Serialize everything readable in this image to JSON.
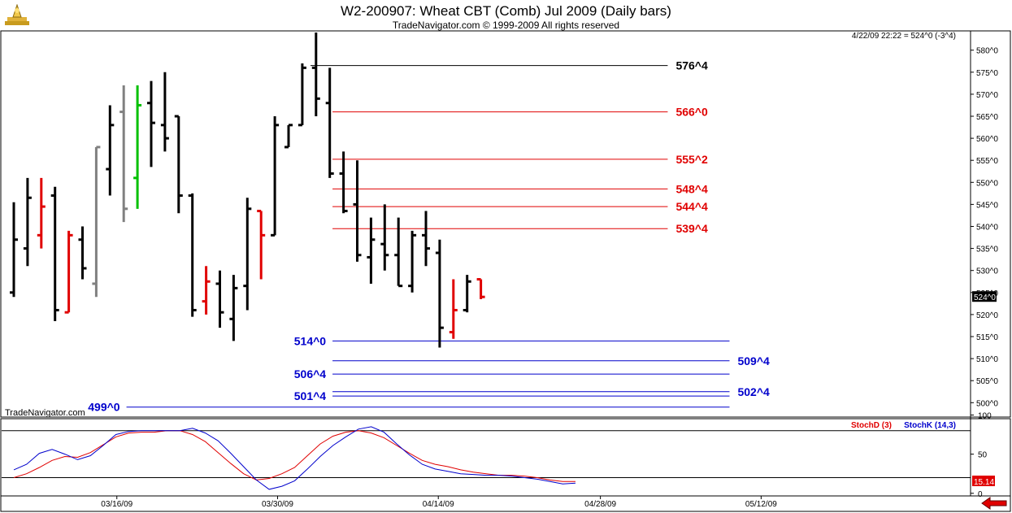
{
  "header": {
    "title": "W2-200907:  Wheat CBT (Comb) Jul 2009  (Daily bars)",
    "subtitle": "TradeNavigator.com © 1999-2009 All rights reserved",
    "timestamp": "4/22/09 22:22 = 524^0 (-3^4)",
    "watermark": "TradeNavigator.com",
    "last_price_label": "524^0",
    "indicator_value_label": "15.14"
  },
  "chart_data": [
    {
      "type": "bar",
      "subtype": "ohlc",
      "title": "W2-200907:  Wheat CBT (Comb) Jul 2009  (Daily bars)",
      "ylim": [
        496,
        583
      ],
      "y_ticks": [
        500,
        505,
        510,
        515,
        520,
        525,
        530,
        535,
        540,
        545,
        550,
        555,
        560,
        565,
        570,
        575,
        580
      ],
      "y_tick_labels": [
        "500^0",
        "505^0",
        "510^0",
        "515^0",
        "520^0",
        "525^0",
        "530^0",
        "535^0",
        "540^0",
        "545^0",
        "550^0",
        "555^0",
        "560^0",
        "565^0",
        "570^0",
        "575^0",
        "580^0"
      ],
      "x_tick_labels": [
        "03/16/09",
        "03/30/09",
        "04/14/09",
        "04/28/09",
        "05/12/09"
      ],
      "x_tick_index": [
        7.5,
        19.2,
        30.9,
        42.7,
        54.4
      ],
      "x_range": [
        -0.5,
        66
      ],
      "bars": [
        {
          "o": 525,
          "h": 545.5,
          "l": 524,
          "c": 537,
          "color": "#000000"
        },
        {
          "o": 535,
          "h": 551,
          "l": 531,
          "c": 546.5,
          "color": "#000000"
        },
        {
          "o": 538,
          "h": 551,
          "l": 535,
          "c": 544.5,
          "color": "#e00000"
        },
        {
          "o": 547,
          "h": 549,
          "l": 518.5,
          "c": 521,
          "color": "#000000"
        },
        {
          "o": 520.5,
          "h": 539,
          "l": 520.5,
          "c": 538,
          "color": "#e00000"
        },
        {
          "o": 537,
          "h": 540,
          "l": 528,
          "c": 530.5,
          "color": "#000000"
        },
        {
          "o": 527,
          "h": 558,
          "l": 524,
          "c": 558,
          "color": "#808080"
        },
        {
          "o": 553,
          "h": 567.5,
          "l": 547,
          "c": 563,
          "color": "#000000"
        },
        {
          "o": 566,
          "h": 572,
          "l": 541,
          "c": 544,
          "color": "#808080"
        },
        {
          "o": 551,
          "h": 572,
          "l": 544,
          "c": 567.5,
          "color": "#00c000"
        },
        {
          "o": 568,
          "h": 573,
          "l": 553.5,
          "c": 563.5,
          "color": "#000000"
        },
        {
          "o": 563,
          "h": 575,
          "l": 557,
          "c": 560,
          "color": "#000000"
        },
        {
          "o": 565,
          "h": 565,
          "l": 543,
          "c": 547,
          "color": "#000000"
        },
        {
          "o": 547,
          "h": 547.5,
          "l": 519.5,
          "c": 521,
          "color": "#000000"
        },
        {
          "o": 523,
          "h": 531,
          "l": 520,
          "c": 527.5,
          "color": "#e00000"
        },
        {
          "o": 527,
          "h": 530,
          "l": 517,
          "c": 520.5,
          "color": "#000000"
        },
        {
          "o": 519,
          "h": 529,
          "l": 514,
          "c": 526,
          "color": "#000000"
        },
        {
          "o": 526.5,
          "h": 546.5,
          "l": 521,
          "c": 544,
          "color": "#000000"
        },
        {
          "o": 543.5,
          "h": 543.5,
          "l": 528,
          "c": 538,
          "color": "#e00000"
        },
        {
          "o": 538,
          "h": 565,
          "l": 538,
          "c": 563,
          "color": "#000000"
        },
        {
          "o": 558,
          "h": 563,
          "l": 558,
          "c": 563,
          "color": "#000000"
        },
        {
          "o": 563,
          "h": 577,
          "l": 563,
          "c": 576,
          "color": "#000000"
        },
        {
          "o": 576,
          "h": 584,
          "l": 565,
          "c": 569,
          "color": "#000000"
        },
        {
          "o": 568,
          "h": 576,
          "l": 551,
          "c": 552,
          "color": "#000000"
        },
        {
          "o": 552,
          "h": 557,
          "l": 543,
          "c": 543.5,
          "color": "#000000"
        },
        {
          "o": 545,
          "h": 555,
          "l": 532,
          "c": 533.5,
          "color": "#000000"
        },
        {
          "o": 533,
          "h": 542,
          "l": 527,
          "c": 537,
          "color": "#000000"
        },
        {
          "o": 536,
          "h": 545,
          "l": 530,
          "c": 533.5,
          "color": "#000000"
        },
        {
          "o": 533.5,
          "h": 542,
          "l": 526.5,
          "c": 526.5,
          "color": "#000000"
        },
        {
          "o": 526.5,
          "h": 539,
          "l": 525,
          "c": 538,
          "color": "#000000"
        },
        {
          "o": 538,
          "h": 543.5,
          "l": 531,
          "c": 535,
          "color": "#000000"
        },
        {
          "o": 534,
          "h": 537,
          "l": 512.5,
          "c": 517,
          "color": "#000000"
        },
        {
          "o": 516,
          "h": 528,
          "l": 514.5,
          "c": 521,
          "color": "#e00000"
        },
        {
          "o": 521,
          "h": 529,
          "l": 520.5,
          "c": 527.5,
          "color": "#000000"
        },
        {
          "o": 528,
          "h": 528,
          "l": 523.5,
          "c": 524,
          "color": "#e00000"
        }
      ],
      "levels": [
        {
          "value": 576.5,
          "label": "576^4",
          "color": "#000000",
          "from": 21.6,
          "to": 47.6,
          "label_side": "right"
        },
        {
          "value": 566,
          "label": "566^0",
          "color": "#e00000",
          "from": 23.2,
          "to": 47.6,
          "label_side": "right"
        },
        {
          "value": 555.25,
          "label": "555^2",
          "color": "#e00000",
          "from": 23.2,
          "to": 47.6,
          "label_side": "right"
        },
        {
          "value": 548.5,
          "label": "548^4",
          "color": "#e00000",
          "from": 23.2,
          "to": 47.6,
          "label_side": "right"
        },
        {
          "value": 544.5,
          "label": "544^4",
          "color": "#e00000",
          "from": 23.2,
          "to": 47.6,
          "label_side": "right"
        },
        {
          "value": 539.5,
          "label": "539^4",
          "color": "#e00000",
          "from": 23.2,
          "to": 47.6,
          "label_side": "right"
        },
        {
          "value": 514,
          "label": "514^0",
          "color": "#0000cc",
          "from": 23.2,
          "to": 52.1,
          "label_side": "left"
        },
        {
          "value": 509.5,
          "label": "509^4",
          "color": "#0000cc",
          "from": 23.2,
          "to": 52.1,
          "label_side": "right"
        },
        {
          "value": 506.5,
          "label": "506^4",
          "color": "#0000cc",
          "from": 23.2,
          "to": 52.1,
          "label_side": "left"
        },
        {
          "value": 502.5,
          "label": "502^4",
          "color": "#0000cc",
          "from": 23.2,
          "to": 52.1,
          "label_side": "right"
        },
        {
          "value": 501.5,
          "label": "501^4",
          "color": "#0000cc",
          "from": 23.2,
          "to": 52.1,
          "label_side": "left"
        },
        {
          "value": 499,
          "label": "499^0",
          "color": "#0000cc",
          "from": 8.2,
          "to": 52.1,
          "label_side": "left"
        }
      ]
    },
    {
      "type": "line",
      "title": "Stochastic",
      "ylim": [
        -4,
        110
      ],
      "y_ticks": [
        0,
        50,
        100
      ],
      "y_tick_labels": [
        "0",
        "50",
        "100"
      ],
      "reference_lines": [
        20,
        80
      ],
      "legend": [
        {
          "name": "StochD (3)",
          "color": "#e00000"
        },
        {
          "name": "StochK (14,3)",
          "color": "#0000cc"
        }
      ],
      "series": [
        {
          "name": "StochD (3)",
          "color": "#e00000",
          "values": [
            20,
            25,
            33,
            42,
            47,
            46,
            52,
            62,
            72,
            77,
            78,
            78,
            80,
            80,
            75,
            66,
            52,
            38,
            25,
            17,
            19,
            25,
            33,
            48,
            63,
            73,
            78,
            80,
            77,
            71,
            61,
            51,
            42,
            37,
            34,
            30,
            27,
            25,
            23,
            23,
            22,
            20,
            17,
            15,
            15
          ]
        },
        {
          "name": "StochK (14,3)",
          "color": "#0000cc",
          "values": [
            30,
            37,
            51,
            56,
            50,
            43,
            48,
            61,
            75,
            79,
            80,
            80,
            80,
            80,
            83,
            77,
            67,
            51,
            34,
            17,
            5,
            9,
            16,
            31,
            47,
            61,
            72,
            82,
            85,
            78,
            63,
            49,
            37,
            31,
            28,
            25,
            24,
            23,
            23,
            22,
            20,
            18,
            15,
            12,
            13
          ]
        }
      ],
      "last_value_label": "15.14"
    }
  ],
  "colors": {
    "accent_red": "#e00000",
    "accent_blue": "#0000cc",
    "price_bar": "#000000",
    "gray_bar": "#808080",
    "green_bar": "#00c000"
  }
}
